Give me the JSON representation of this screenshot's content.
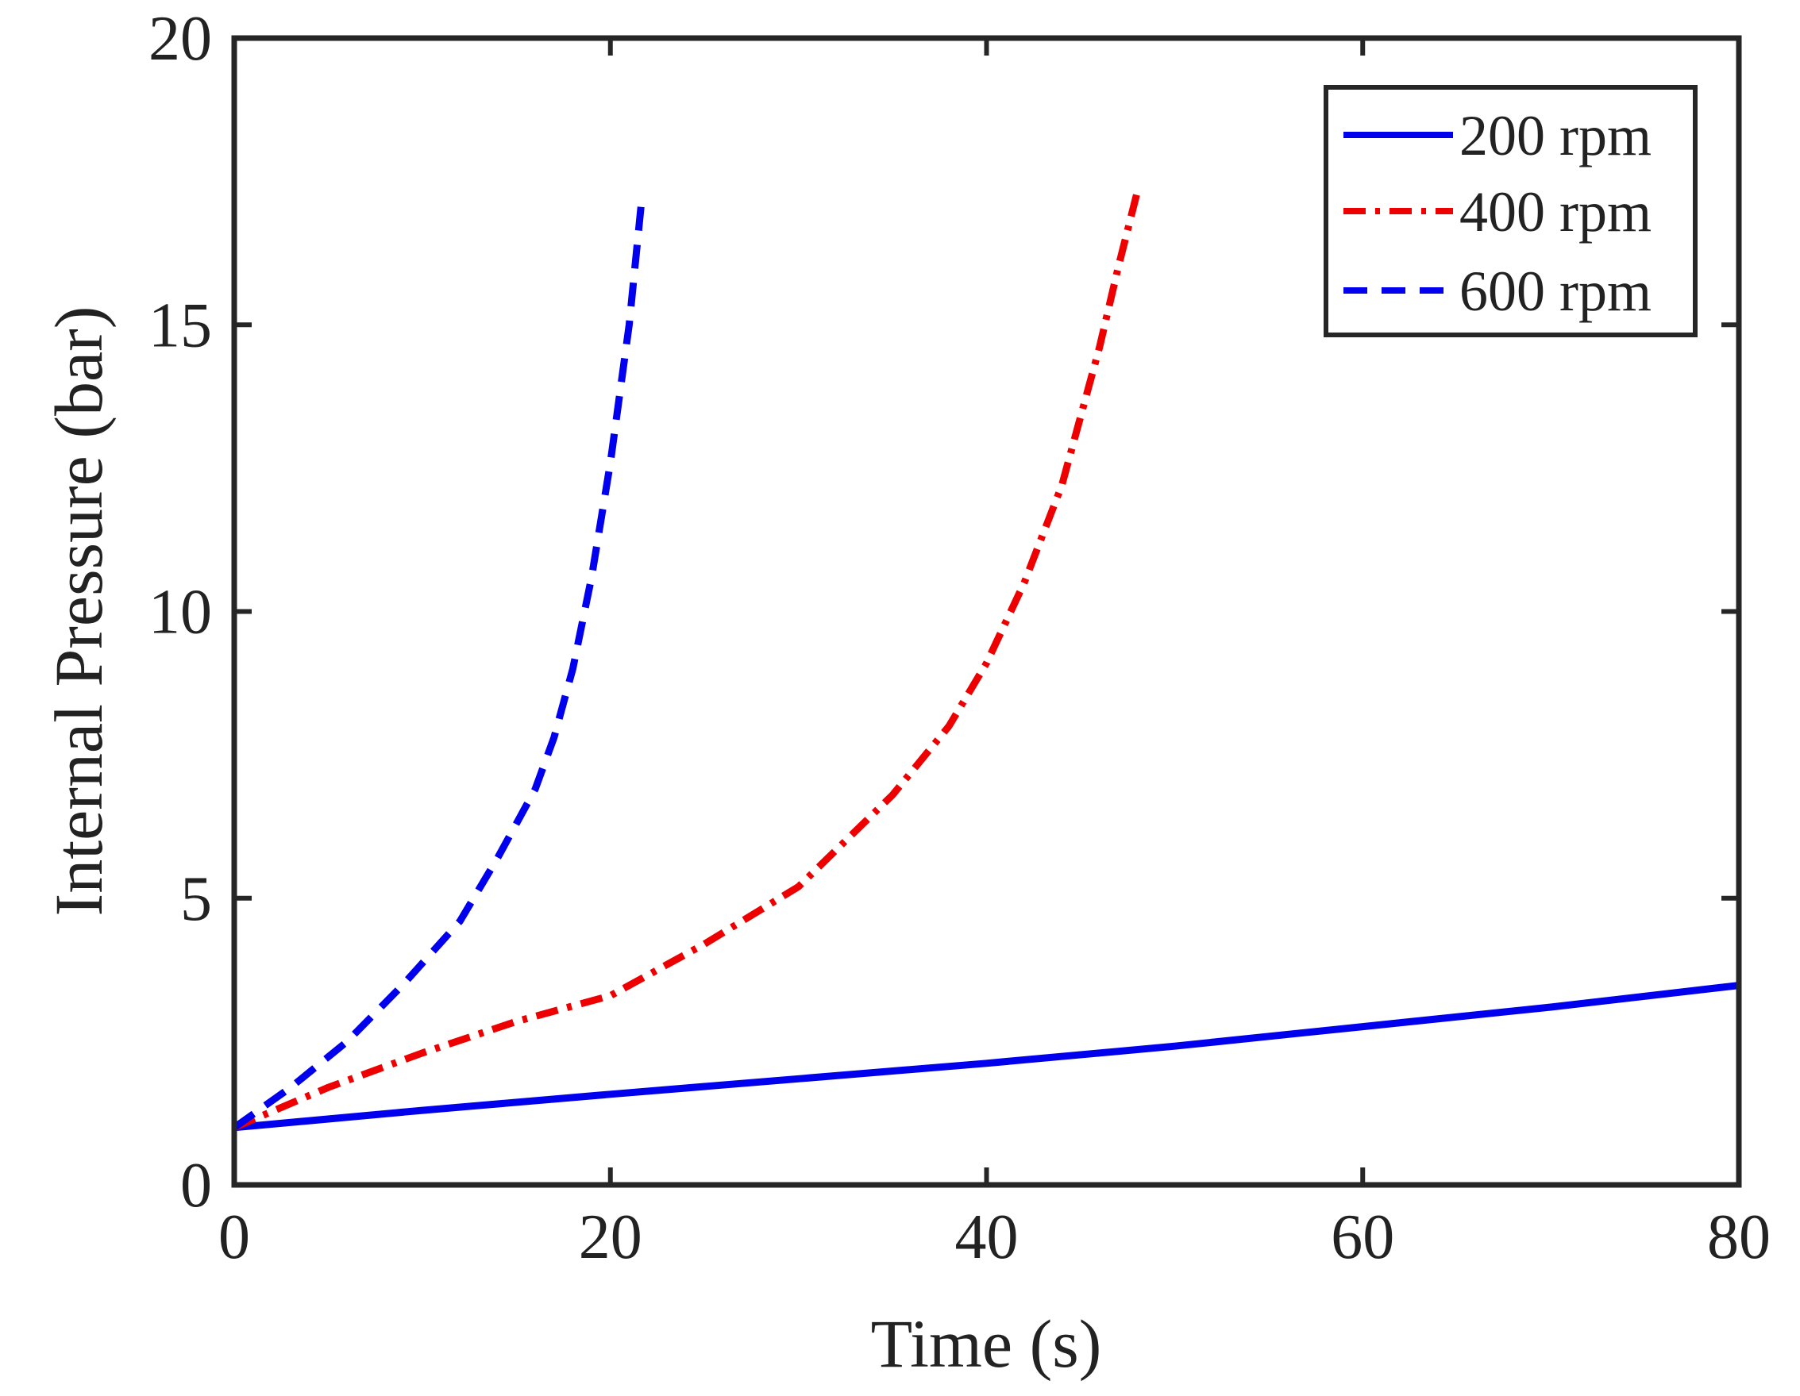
{
  "chart_data": {
    "type": "line",
    "title": "",
    "xlabel": "Time (s)",
    "ylabel": "Internal Pressure (bar)",
    "xlim": [
      0,
      80
    ],
    "ylim": [
      0,
      20
    ],
    "xticks": [
      0,
      20,
      40,
      60,
      80
    ],
    "yticks": [
      0,
      5,
      10,
      15,
      20
    ],
    "grid": false,
    "legend_position": "top-right",
    "series": [
      {
        "name": "200 rpm",
        "color": "#0000ee",
        "style": "solid",
        "x": [
          0,
          10,
          20,
          30,
          40,
          50,
          60,
          70,
          80
        ],
        "y": [
          1.0,
          1.3,
          1.58,
          1.85,
          2.12,
          2.42,
          2.76,
          3.1,
          3.48
        ]
      },
      {
        "name": "400 rpm",
        "color": "#ee0000",
        "style": "dashdot",
        "x": [
          0,
          5,
          10,
          15,
          20,
          25,
          30,
          35,
          38,
          40,
          42,
          44,
          46,
          47,
          48
        ],
        "y": [
          1.0,
          1.7,
          2.3,
          2.85,
          3.3,
          4.2,
          5.2,
          6.8,
          8.0,
          9.1,
          10.5,
          12.2,
          14.6,
          16.0,
          17.3
        ]
      },
      {
        "name": "600 rpm",
        "color": "#0000ee",
        "style": "dashed",
        "x": [
          0,
          3,
          6,
          9,
          12,
          14,
          16,
          17,
          18,
          19,
          20,
          21,
          21.7
        ],
        "y": [
          1.0,
          1.7,
          2.5,
          3.5,
          4.6,
          5.7,
          6.9,
          7.8,
          9.0,
          10.6,
          12.6,
          15.0,
          17.3
        ]
      }
    ]
  }
}
